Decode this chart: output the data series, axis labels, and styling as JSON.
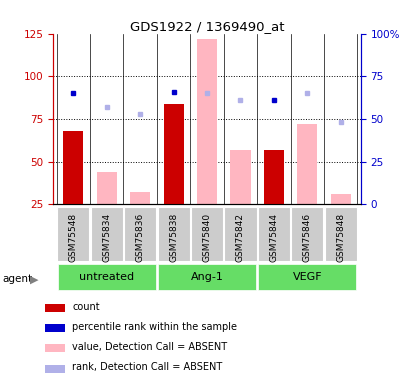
{
  "title": "GDS1922 / 1369490_at",
  "samples": [
    "GSM75548",
    "GSM75834",
    "GSM75836",
    "GSM75838",
    "GSM75840",
    "GSM75842",
    "GSM75844",
    "GSM75846",
    "GSM75848"
  ],
  "group_boundaries": [
    [
      0,
      3,
      "untreated"
    ],
    [
      3,
      6,
      "Ang-1"
    ],
    [
      6,
      9,
      "VEGF"
    ]
  ],
  "red_bars": [
    68,
    0,
    0,
    84,
    0,
    0,
    57,
    0,
    0
  ],
  "blue_squares": [
    65,
    0,
    0,
    66,
    0,
    0,
    61,
    0,
    0
  ],
  "pink_bars": [
    0,
    44,
    32,
    0,
    122,
    57,
    0,
    72,
    31
  ],
  "lavender_squares": [
    0,
    57,
    53,
    0,
    65,
    61,
    0,
    65,
    48
  ],
  "left_ylim": [
    25,
    125
  ],
  "left_yticks": [
    25,
    50,
    75,
    100,
    125
  ],
  "right_ylim": [
    0,
    100
  ],
  "right_yticks": [
    0,
    25,
    50,
    75,
    100
  ],
  "right_yticklabels": [
    "0",
    "25",
    "50",
    "75",
    "100%"
  ],
  "grid_lines": [
    50,
    75,
    100
  ],
  "red_color": "#cc0000",
  "blue_color": "#0000cc",
  "pink_color": "#ffb6c1",
  "lavender_color": "#b0b0e8",
  "green_color": "#66dd66",
  "gray_color": "#cccccc",
  "bar_width": 0.6,
  "legend_items": [
    {
      "color": "#cc0000",
      "label": "count"
    },
    {
      "color": "#0000cc",
      "label": "percentile rank within the sample"
    },
    {
      "color": "#ffb6c1",
      "label": "value, Detection Call = ABSENT"
    },
    {
      "color": "#b0b0e8",
      "label": "rank, Detection Call = ABSENT"
    }
  ]
}
